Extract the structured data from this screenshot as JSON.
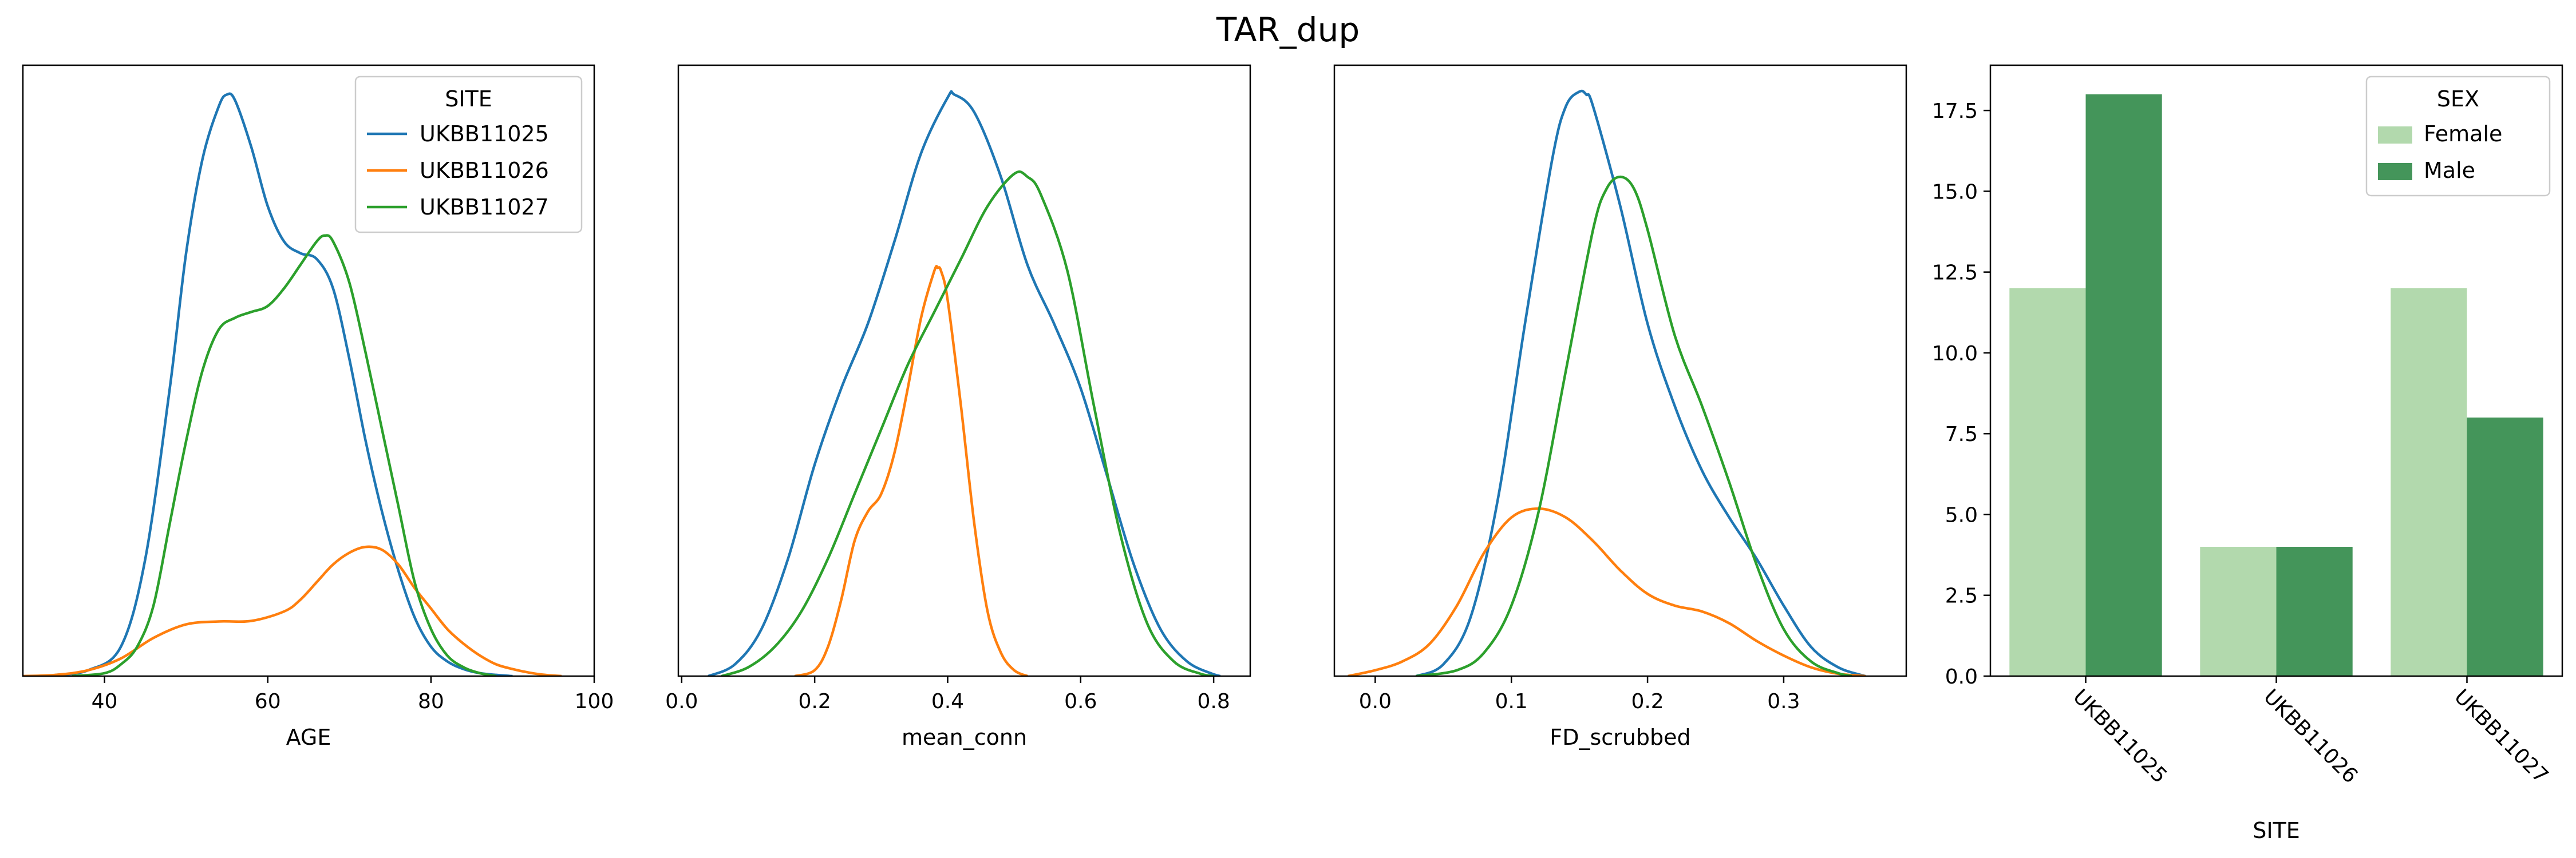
{
  "figure": {
    "title": "TAR_dup"
  },
  "chart_data": [
    {
      "type": "line",
      "xlabel": "AGE",
      "xlim": [
        30,
        100
      ],
      "xticks": [
        40,
        60,
        80,
        100
      ],
      "ylim": [
        0,
        1.04
      ],
      "legend": {
        "title": "SITE",
        "placement": "top-right"
      },
      "series": [
        {
          "name": "UKBB11025",
          "color": "#1f77b4",
          "x": [
            34,
            38,
            42,
            45,
            48,
            50,
            52,
            54,
            55,
            56,
            58,
            60,
            62,
            64,
            66,
            68,
            70,
            72,
            74,
            76,
            78,
            80,
            82,
            84,
            86,
            88,
            90
          ],
          "y": [
            0.002,
            0.01,
            0.05,
            0.2,
            0.49,
            0.72,
            0.88,
            0.97,
            0.99,
            0.98,
            0.9,
            0.8,
            0.74,
            0.72,
            0.71,
            0.66,
            0.54,
            0.4,
            0.28,
            0.18,
            0.1,
            0.05,
            0.025,
            0.012,
            0.005,
            0.002,
            0.0
          ]
        },
        {
          "name": "UKBB11026",
          "color": "#ff7f0e",
          "x": [
            30,
            34,
            38,
            42,
            46,
            50,
            54,
            58,
            62,
            64,
            66,
            68,
            70,
            72,
            74,
            76,
            78,
            80,
            82,
            84,
            86,
            88,
            90,
            92,
            94,
            96
          ],
          "y": [
            0.0,
            0.002,
            0.01,
            0.03,
            0.065,
            0.088,
            0.093,
            0.094,
            0.11,
            0.13,
            0.16,
            0.19,
            0.21,
            0.22,
            0.215,
            0.19,
            0.15,
            0.115,
            0.08,
            0.055,
            0.035,
            0.02,
            0.012,
            0.006,
            0.002,
            0.0
          ]
        },
        {
          "name": "UKBB11027",
          "color": "#2ca02c",
          "x": [
            36,
            40,
            42,
            44,
            46,
            48,
            50,
            52,
            54,
            56,
            58,
            60,
            62,
            64,
            66,
            67,
            68,
            70,
            72,
            74,
            76,
            78,
            80,
            82,
            84,
            86,
            88
          ],
          "y": [
            0.0,
            0.005,
            0.02,
            0.05,
            0.12,
            0.26,
            0.4,
            0.52,
            0.59,
            0.61,
            0.62,
            0.63,
            0.66,
            0.7,
            0.74,
            0.75,
            0.74,
            0.67,
            0.55,
            0.42,
            0.29,
            0.16,
            0.08,
            0.035,
            0.015,
            0.005,
            0.0
          ]
        }
      ]
    },
    {
      "type": "line",
      "xlabel": "mean_conn",
      "xlim": [
        -0.005,
        0.855
      ],
      "xticks": [
        0.0,
        0.2,
        0.4,
        0.6,
        0.8
      ],
      "xtick_labels": [
        "0.0",
        "0.2",
        "0.4",
        "0.6",
        "0.8"
      ],
      "ylim": [
        0,
        1.04
      ],
      "series": [
        {
          "name": "UKBB11025",
          "color": "#1f77b4",
          "x": [
            0.04,
            0.08,
            0.12,
            0.16,
            0.2,
            0.24,
            0.28,
            0.32,
            0.36,
            0.4,
            0.41,
            0.44,
            0.48,
            0.52,
            0.56,
            0.6,
            0.64,
            0.68,
            0.72,
            0.76,
            0.8,
            0.81
          ],
          "y": [
            0.0,
            0.02,
            0.08,
            0.2,
            0.36,
            0.49,
            0.6,
            0.74,
            0.89,
            0.985,
            0.99,
            0.96,
            0.85,
            0.7,
            0.6,
            0.49,
            0.34,
            0.19,
            0.08,
            0.025,
            0.003,
            0.0
          ]
        },
        {
          "name": "UKBB11026",
          "color": "#ff7f0e",
          "x": [
            0.17,
            0.2,
            0.22,
            0.24,
            0.26,
            0.28,
            0.3,
            0.32,
            0.34,
            0.36,
            0.38,
            0.385,
            0.39,
            0.4,
            0.42,
            0.44,
            0.46,
            0.48,
            0.5,
            0.52
          ],
          "y": [
            0.0,
            0.01,
            0.05,
            0.13,
            0.23,
            0.28,
            0.31,
            0.38,
            0.49,
            0.61,
            0.69,
            0.695,
            0.69,
            0.64,
            0.46,
            0.26,
            0.11,
            0.04,
            0.01,
            0.0
          ]
        },
        {
          "name": "UKBB11027",
          "color": "#2ca02c",
          "x": [
            0.06,
            0.1,
            0.14,
            0.18,
            0.22,
            0.26,
            0.3,
            0.34,
            0.38,
            0.42,
            0.46,
            0.5,
            0.52,
            0.54,
            0.58,
            0.62,
            0.66,
            0.7,
            0.74,
            0.78,
            0.8
          ],
          "y": [
            0.0,
            0.015,
            0.05,
            0.11,
            0.2,
            0.31,
            0.42,
            0.53,
            0.62,
            0.71,
            0.8,
            0.855,
            0.85,
            0.82,
            0.69,
            0.46,
            0.24,
            0.09,
            0.025,
            0.004,
            0.0
          ]
        }
      ]
    },
    {
      "type": "line",
      "xlabel": "FD_scrubbed",
      "xlim": [
        -0.03,
        0.39
      ],
      "xticks": [
        0.0,
        0.1,
        0.2,
        0.3
      ],
      "xtick_labels": [
        "0.0",
        "0.1",
        "0.2",
        "0.3"
      ],
      "ylim": [
        0,
        1.04
      ],
      "series": [
        {
          "name": "UKBB11025",
          "color": "#1f77b4",
          "x": [
            0.03,
            0.05,
            0.07,
            0.09,
            0.11,
            0.13,
            0.14,
            0.15,
            0.155,
            0.16,
            0.18,
            0.2,
            0.22,
            0.24,
            0.26,
            0.28,
            0.3,
            0.32,
            0.34,
            0.36
          ],
          "y": [
            0.0,
            0.02,
            0.1,
            0.3,
            0.6,
            0.88,
            0.97,
            0.995,
            0.99,
            0.97,
            0.8,
            0.6,
            0.46,
            0.35,
            0.27,
            0.2,
            0.12,
            0.05,
            0.015,
            0.0
          ]
        },
        {
          "name": "UKBB11026",
          "color": "#ff7f0e",
          "x": [
            -0.02,
            0.0,
            0.02,
            0.04,
            0.06,
            0.08,
            0.1,
            0.12,
            0.14,
            0.16,
            0.18,
            0.2,
            0.22,
            0.24,
            0.26,
            0.28,
            0.3,
            0.32,
            0.34,
            0.36
          ],
          "y": [
            0.0,
            0.01,
            0.025,
            0.055,
            0.12,
            0.21,
            0.27,
            0.285,
            0.27,
            0.23,
            0.18,
            0.14,
            0.12,
            0.11,
            0.09,
            0.06,
            0.035,
            0.015,
            0.004,
            0.0
          ]
        },
        {
          "name": "UKBB11027",
          "color": "#2ca02c",
          "x": [
            0.03,
            0.06,
            0.08,
            0.1,
            0.12,
            0.14,
            0.16,
            0.17,
            0.18,
            0.19,
            0.2,
            0.22,
            0.24,
            0.26,
            0.28,
            0.3,
            0.32,
            0.34,
            0.35
          ],
          "y": [
            0.0,
            0.01,
            0.04,
            0.12,
            0.28,
            0.52,
            0.76,
            0.83,
            0.85,
            0.83,
            0.76,
            0.58,
            0.46,
            0.33,
            0.19,
            0.08,
            0.025,
            0.005,
            0.0
          ]
        }
      ]
    },
    {
      "type": "bar",
      "xlabel": "SITE",
      "categories": [
        "UKBB11025",
        "UKBB11026",
        "UKBB11027"
      ],
      "ylim": [
        0,
        18.9
      ],
      "yticks": [
        0.0,
        2.5,
        5.0,
        7.5,
        10.0,
        12.5,
        15.0,
        17.5
      ],
      "ytick_labels": [
        "0.0",
        "2.5",
        "5.0",
        "7.5",
        "10.0",
        "12.5",
        "15.0",
        "17.5"
      ],
      "legend": {
        "title": "SEX",
        "placement": "top-right"
      },
      "series": [
        {
          "name": "Female",
          "color": "#b2d9ad",
          "values": [
            12,
            4,
            12
          ]
        },
        {
          "name": "Male",
          "color": "#44955a",
          "values": [
            18,
            4,
            8
          ]
        }
      ]
    }
  ]
}
